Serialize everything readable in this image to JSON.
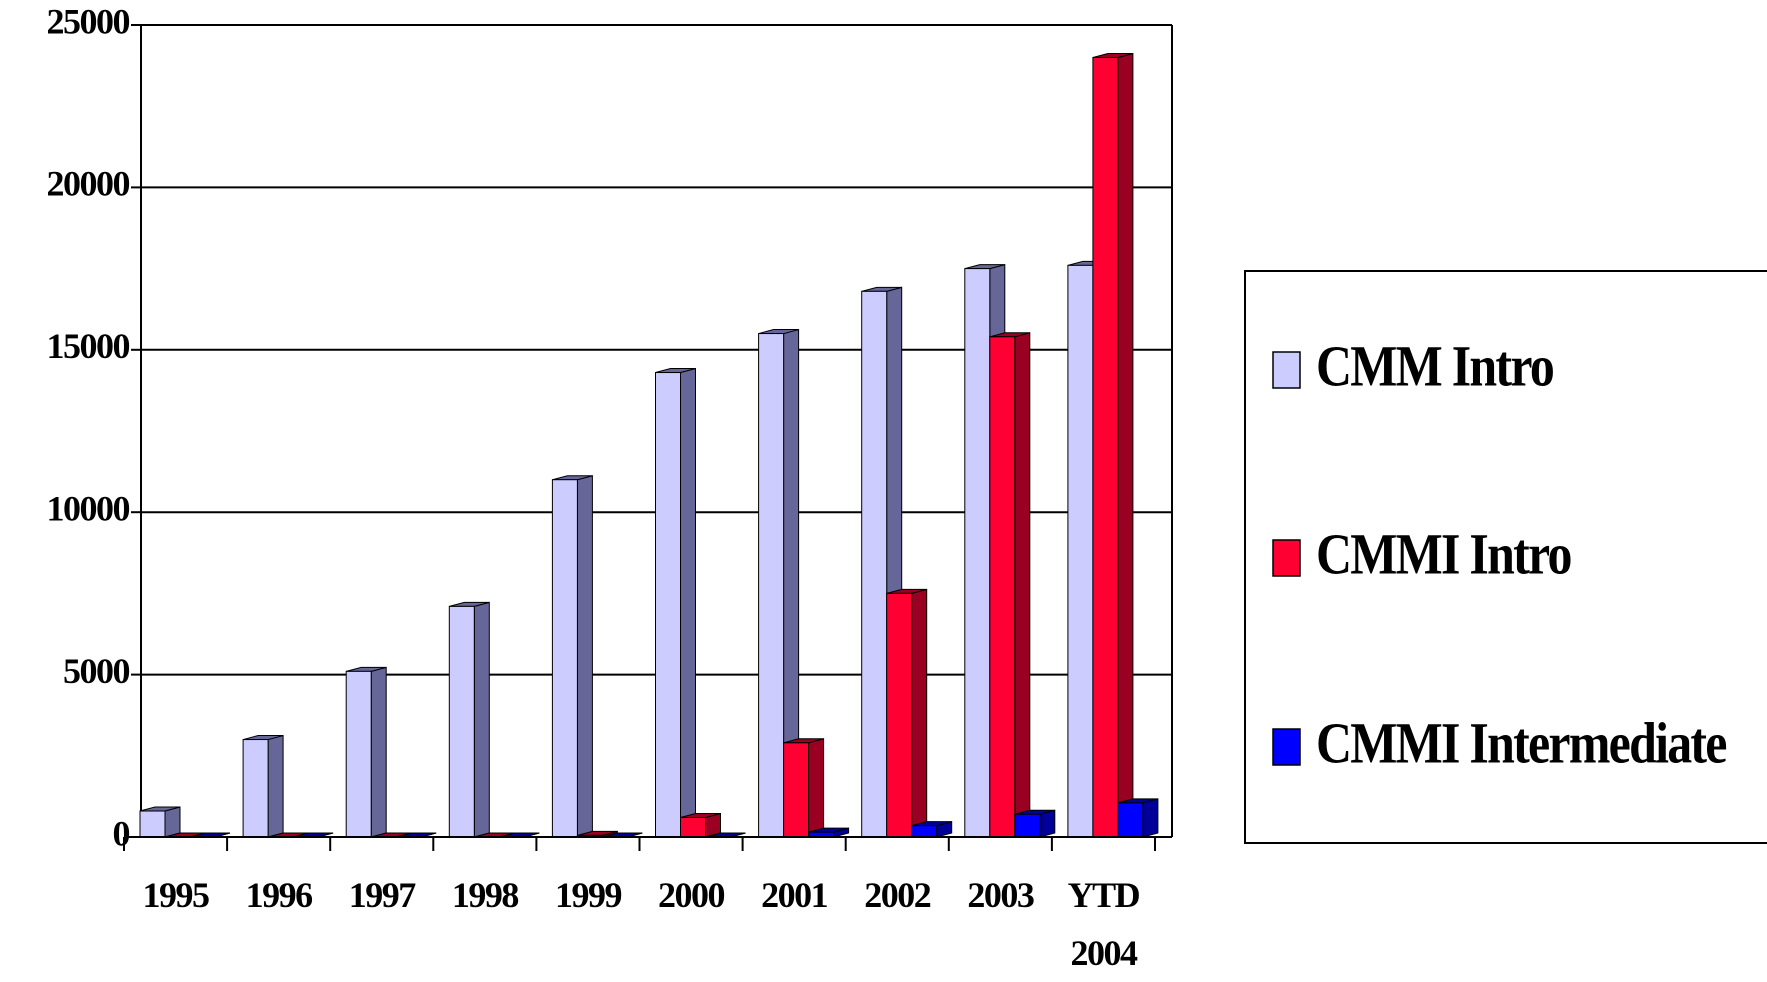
{
  "chart_data": {
    "type": "bar3d",
    "categories": [
      "1995",
      "1996",
      "1997",
      "1998",
      "1999",
      "2000",
      "2001",
      "2002",
      "2003",
      "YTD 2004"
    ],
    "series": [
      {
        "name": "CMM Intro",
        "color": "#ccccff",
        "side": "#666699",
        "values": [
          800,
          3000,
          5100,
          7100,
          11000,
          14300,
          15500,
          16800,
          17500,
          17600
        ]
      },
      {
        "name": "CMMI Intro",
        "color": "#ff0033",
        "side": "#990022",
        "values": [
          0,
          0,
          0,
          0,
          50,
          600,
          2900,
          7500,
          15400,
          24000
        ]
      },
      {
        "name": "CMMI Intermediate",
        "color": "#0000ff",
        "side": "#000099",
        "values": [
          0,
          0,
          0,
          0,
          0,
          0,
          150,
          350,
          700,
          1050
        ]
      }
    ],
    "ylim": [
      0,
      25000
    ],
    "yticks": [
      0,
      5000,
      10000,
      15000,
      20000,
      25000
    ],
    "grid": true,
    "legend": "right"
  }
}
